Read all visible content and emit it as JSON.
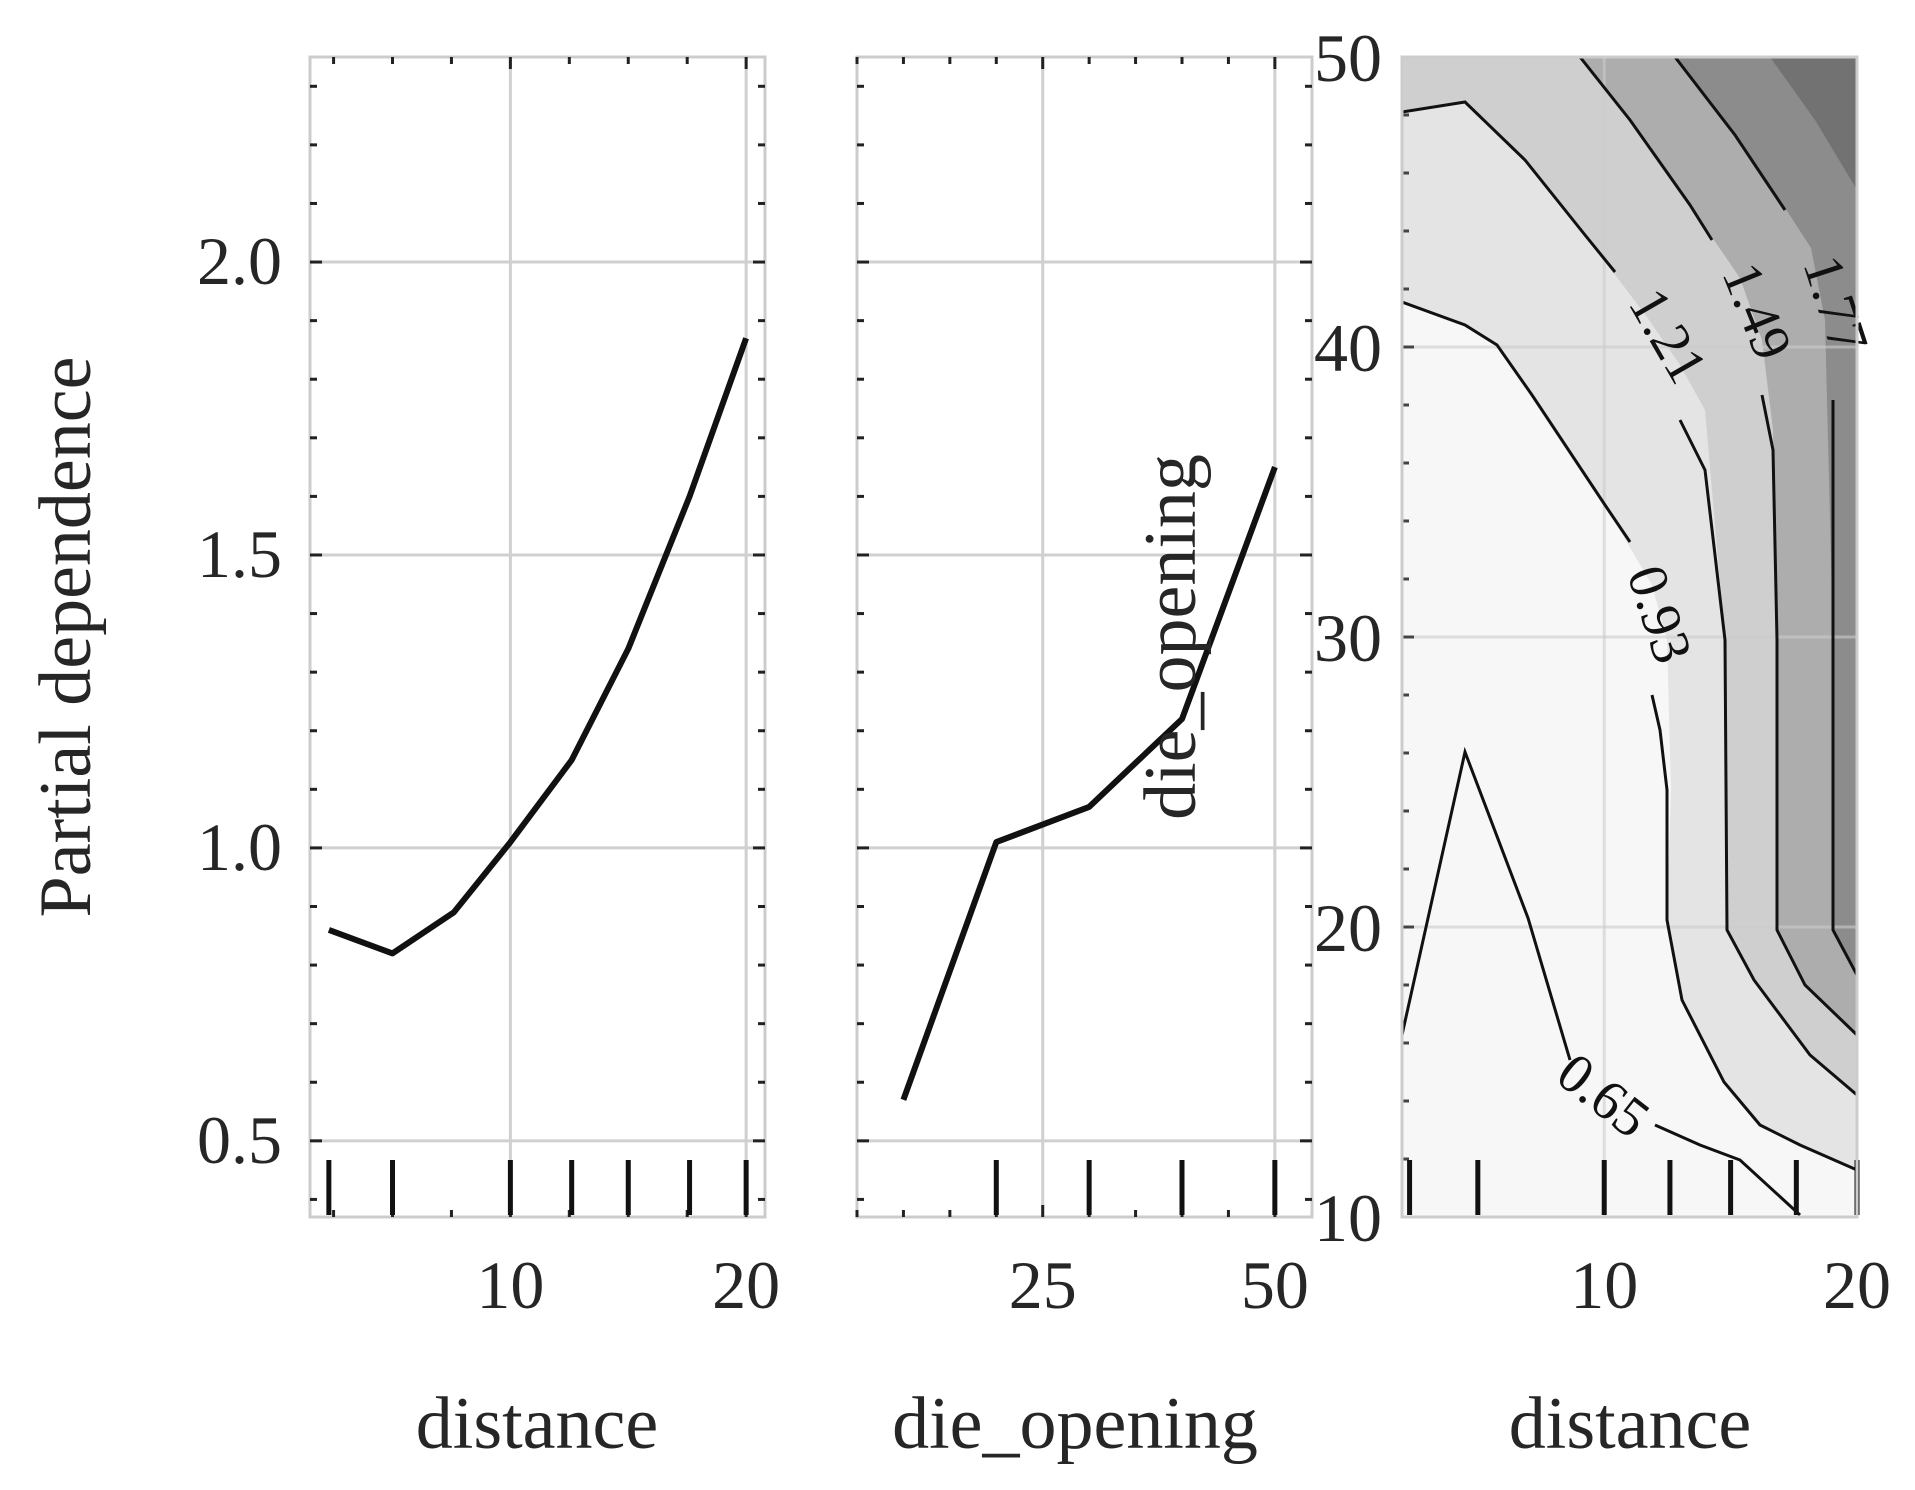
{
  "chart_data": [
    {
      "type": "line",
      "xlabel": "distance",
      "ylabel": "Partial dependence",
      "xticks": [
        10,
        20
      ],
      "yticks": [
        0.5,
        1.0,
        1.5,
        2.0
      ],
      "ytick_labels": [
        "0.5",
        "1.0",
        "1.5",
        "2.0"
      ],
      "xlim": [
        1.5,
        20.8
      ],
      "ylim": [
        0.37,
        2.35
      ],
      "grid": true,
      "x": [
        2.3,
        5.0,
        7.6,
        10.0,
        12.6,
        15.0,
        17.6,
        20.0
      ],
      "y": [
        0.86,
        0.82,
        0.89,
        1.01,
        1.15,
        1.34,
        1.6,
        1.87
      ],
      "rug_x": [
        2.3,
        5.0,
        10.0,
        12.6,
        15.0,
        17.6,
        20.0
      ]
    },
    {
      "type": "line",
      "xlabel": "die_opening",
      "xticks": [
        25,
        50
      ],
      "yticks": [
        0.5,
        1.0,
        1.5,
        2.0
      ],
      "xlim": [
        5,
        54
      ],
      "ylim": [
        0.37,
        2.35
      ],
      "grid": true,
      "x": [
        10,
        20,
        30,
        40,
        50
      ],
      "y": [
        0.57,
        1.01,
        1.07,
        1.22,
        1.65
      ],
      "rug_x": [
        20,
        30,
        40,
        50
      ]
    },
    {
      "type": "contour",
      "xlabel": "distance",
      "ylabel": "die_opening",
      "xticks": [
        10,
        20
      ],
      "yticks": [
        10,
        20,
        30,
        40,
        50
      ],
      "xlim": [
        2.0,
        20.0
      ],
      "ylim": [
        10,
        50
      ],
      "grid": true,
      "levels": [
        0.65,
        0.93,
        1.21,
        1.49,
        1.77
      ],
      "level_labels": [
        "0.65",
        "0.93",
        "1.21",
        "1.49",
        "1.77"
      ],
      "fill_colors": [
        "#f7f7f7",
        "#e4e4e4",
        "#cfcfcf",
        "#adadad",
        "#8c8c8c",
        "#727272",
        "#4a4a4a"
      ],
      "rug_x": [
        2.3,
        5.0,
        10.0,
        12.6,
        15.0,
        17.6,
        20.0
      ]
    }
  ]
}
